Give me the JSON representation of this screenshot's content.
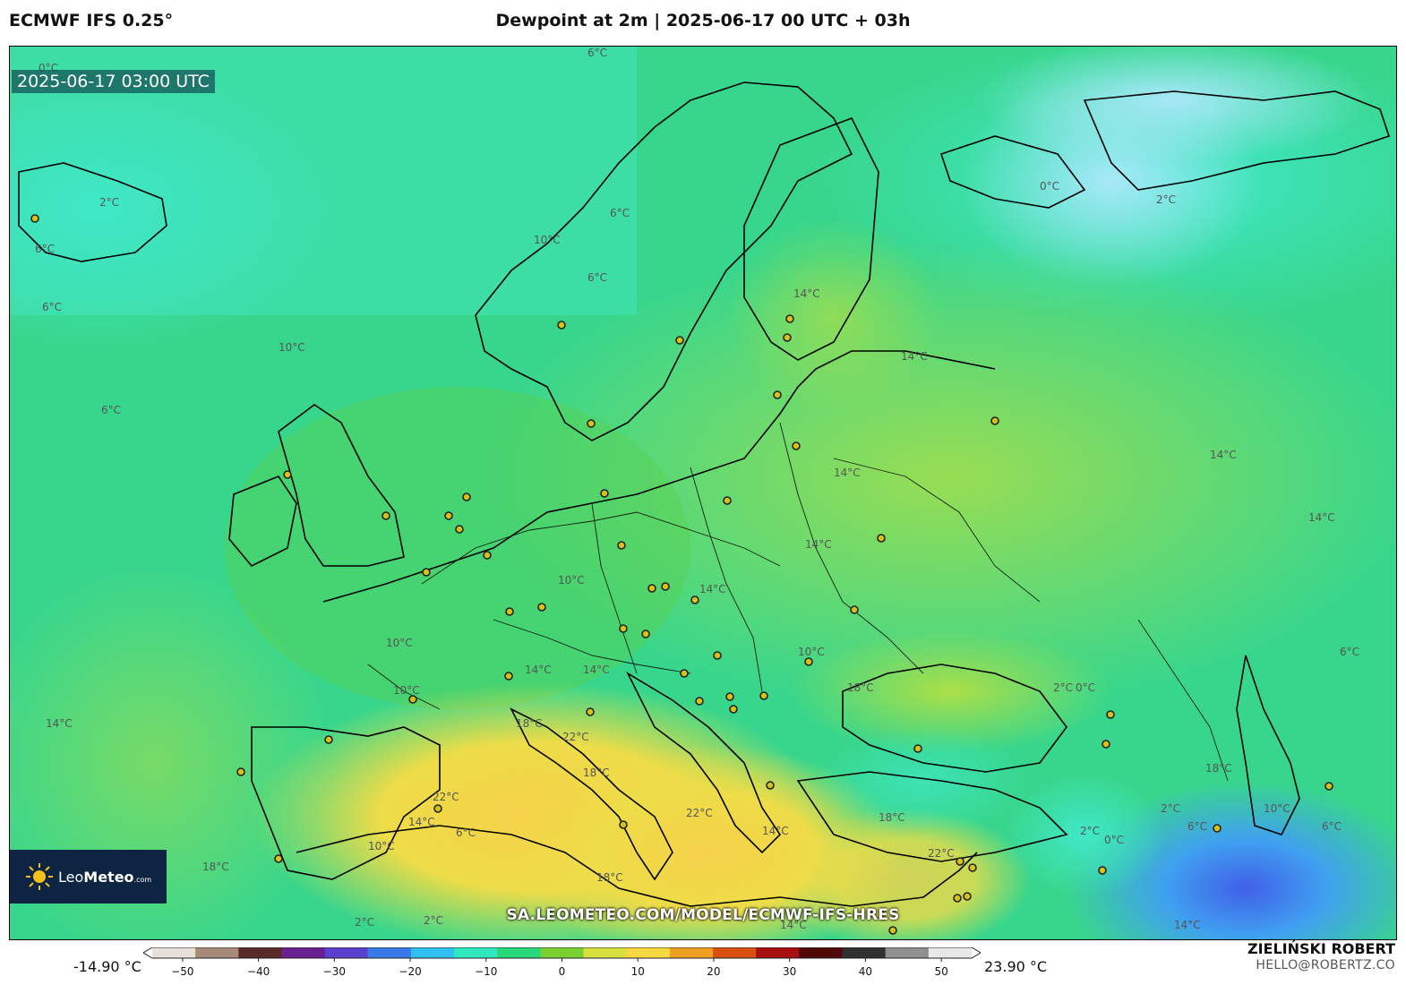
{
  "header": {
    "model": "ECMWF IFS 0.25°",
    "title": "Dewpoint at 2m | 2025-06-17 00 UTC + 03h"
  },
  "map": {
    "valid_time": "2025-06-17 03:00 UTC",
    "logo": {
      "brand_light": "Leo",
      "brand_bold": "Meteo",
      "domain": ".com"
    },
    "watermark": "SA.LEOMETEO.COM/MODEL/ECMWF-IFS-HRES",
    "contour_labels": [
      "0°C",
      "2°C",
      "6°C",
      "10°C",
      "14°C",
      "18°C",
      "22°C"
    ]
  },
  "colorbar": {
    "min_label": "-14.90 °C",
    "max_label": "23.90 °C",
    "ticks": [
      "−50",
      "−40",
      "−30",
      "−20",
      "−10",
      "0",
      "10",
      "20",
      "30",
      "40",
      "50"
    ],
    "colors": [
      "#e8e0d8",
      "#a88a78",
      "#5a2a2a",
      "#6a1f8f",
      "#5a40d0",
      "#3a7ae8",
      "#30c0f0",
      "#30e8c0",
      "#28d87a",
      "#7ad030",
      "#d8e040",
      "#f8d840",
      "#f0a020",
      "#d85010",
      "#a81010",
      "#500808",
      "#303030",
      "#909090",
      "#e8e8e8"
    ]
  },
  "credits": {
    "author": "ZIELIŃSKI ROBERT",
    "email": "HELLO@ROBERTZ.CO"
  }
}
